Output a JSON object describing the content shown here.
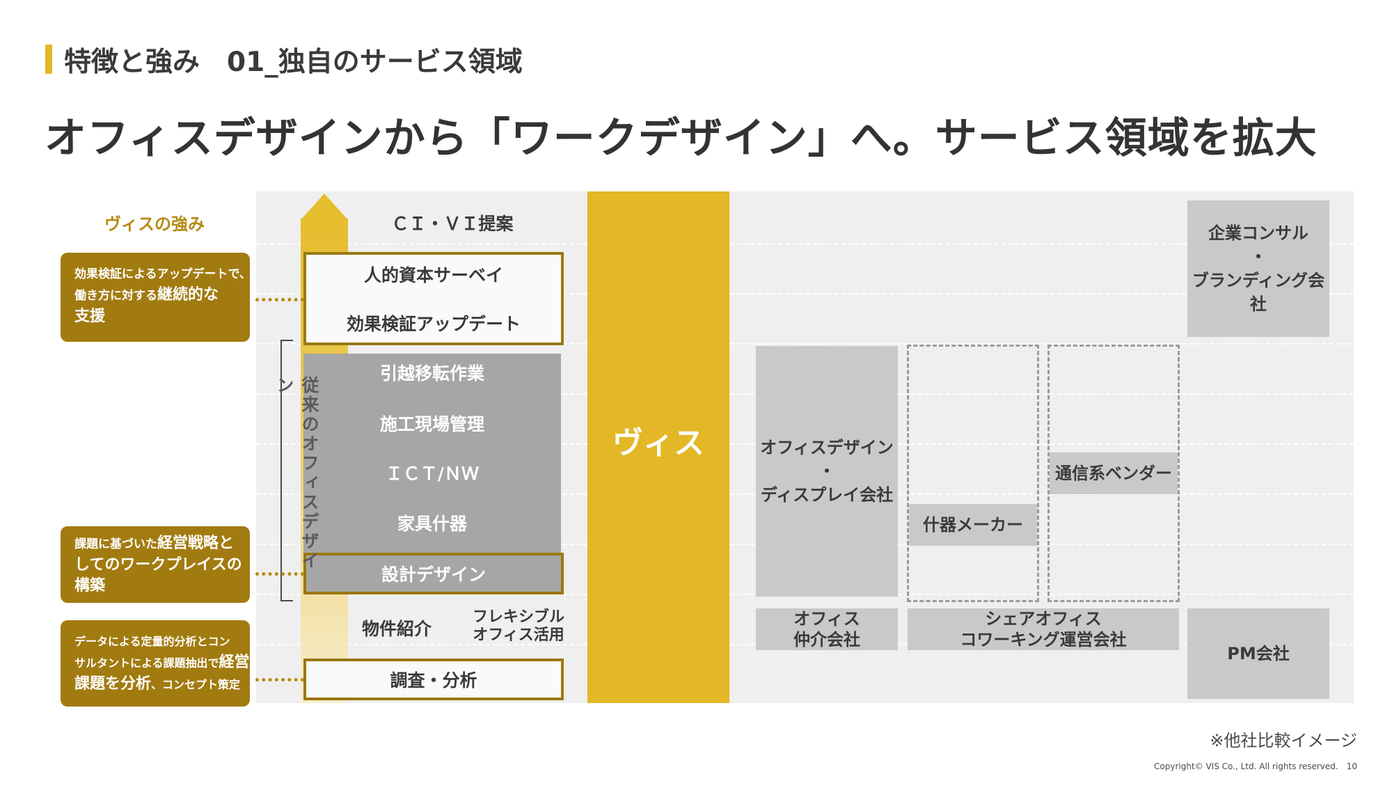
{
  "header": {
    "section_title": "特徴と強み　01_独自のサービス領域",
    "main_title": "オフィスデザインから「ワークデザイン」へ。サービス領域を拡大"
  },
  "strengths": {
    "title": "ヴィスの強み",
    "card1": {
      "line1": "効果検証によるアップデートで、",
      "line2_small": "働き方に対する",
      "line2_big": "継続的な",
      "line3": "支援"
    },
    "card2": {
      "line1_small": "課題に基づいた",
      "line1_big": "経営戦略と",
      "line2": "してのワークプレイスの",
      "line3": "構築"
    },
    "card3": {
      "line1": "データによる定量的分析とコン",
      "line2_small": "サルタントによる課題抽出で",
      "line2_big": "経営",
      "line3_big": "課題を分析",
      "line3_small": "、コンセプト策定"
    }
  },
  "services": {
    "civi": "ＣＩ・ＶＩ提案",
    "survey": "人的資本サーベイ",
    "effect_update": "効果検証アップデート",
    "moving": "引越移転作業",
    "construction": "施工現場管理",
    "ict": "ＩＣＴ/ＮＷ",
    "furniture": "家具什器",
    "design": "設計デザイン",
    "property": "物件紹介",
    "flexible_line1": "フレキシブル",
    "flexible_line2": "オフィス活用",
    "research": "調査・分析",
    "conventional": "従来のオフィスデザイン"
  },
  "vis_label": "ヴィス",
  "competitors": {
    "consulting": {
      "line1": "企業コンサル",
      "line2": "・",
      "line3": "ブランディング会社"
    },
    "office_design": {
      "line1": "オフィスデザイン",
      "line2": "・",
      "line3": "ディスプレイ会社"
    },
    "telecom": "通信系ベンダー",
    "fixture_maker": "什器メーカー",
    "office_broker": {
      "line1": "オフィス",
      "line2": "仲介会社"
    },
    "share_office": {
      "line1": "シェアオフィス",
      "line2": "コワーキング運営会社"
    },
    "pm": "PM会社"
  },
  "footer": {
    "note": "※他社比較イメージ",
    "copyright": "Copyright© VIS Co., Ltd. All rights reserved.　10"
  },
  "colors": {
    "accent_yellow": "#e3b726",
    "strength_brown": "#a27b10",
    "panel_gray": "#efefef",
    "block_gray": "#a6a6a6",
    "competitor_gray": "#c9c9c9"
  }
}
